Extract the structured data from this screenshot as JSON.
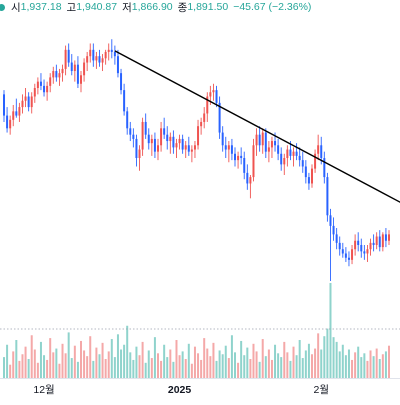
{
  "legend": {
    "dot_color": "#26a69a",
    "value_color": "#26a69a",
    "items": [
      {
        "label": "시",
        "value": "1,937.18"
      },
      {
        "label": "고",
        "value": "1,940.87"
      },
      {
        "label": "저",
        "value": "1,866.90"
      },
      {
        "label": "종",
        "value": "1,891.50"
      }
    ],
    "change": "−45.67 (−2.36%)"
  },
  "colors": {
    "up": "#ef5350",
    "down": "#2962ff",
    "vol_up": "#f4a8a8",
    "vol_down": "#8fd3cc",
    "trendline": "#000000",
    "axis_text": "#131722"
  },
  "x_axis_labels": [
    {
      "text": "12월",
      "bold": false
    },
    {
      "text": "2025",
      "bold": true
    },
    {
      "text": "2월",
      "bold": false
    }
  ],
  "chart_data": {
    "type": "candlestick",
    "title": "",
    "xlabel": "",
    "ylabel": "",
    "ylim": [
      1780,
      2060
    ],
    "volume_max": 100,
    "grid": false,
    "legend": "top-left",
    "trendline": {
      "from_index": 36,
      "from_value": 2029,
      "to_index": 123,
      "to_value": 1895
    },
    "x_ticks": [
      {
        "index": 13,
        "label": "12월"
      },
      {
        "index": 57,
        "label": "2025"
      },
      {
        "index": 103,
        "label": "2월"
      }
    ],
    "candles": [
      [
        1988,
        1992,
        1962,
        1968
      ],
      [
        1968,
        1976,
        1952,
        1956
      ],
      [
        1956,
        1968,
        1950,
        1964
      ],
      [
        1964,
        1978,
        1958,
        1972
      ],
      [
        1972,
        1984,
        1966,
        1968
      ],
      [
        1968,
        1980,
        1962,
        1976
      ],
      [
        1976,
        1988,
        1970,
        1982
      ],
      [
        1982,
        1994,
        1976,
        1986
      ],
      [
        1986,
        1990,
        1972,
        1976
      ],
      [
        1976,
        1990,
        1970,
        1986
      ],
      [
        1986,
        1998,
        1980,
        1994
      ],
      [
        1994,
        2004,
        1988,
        2000
      ],
      [
        2000,
        2008,
        1992,
        1996
      ],
      [
        1996,
        2002,
        1986,
        1990
      ],
      [
        1990,
        2000,
        1982,
        1996
      ],
      [
        1996,
        2008,
        1990,
        2004
      ],
      [
        2004,
        2014,
        1998,
        2010
      ],
      [
        2010,
        2016,
        2000,
        2004
      ],
      [
        2004,
        2012,
        1996,
        2008
      ],
      [
        2008,
        2016,
        2000,
        2012
      ],
      [
        2012,
        2034,
        2006,
        2030
      ],
      [
        2030,
        2036,
        2014,
        2018
      ],
      [
        2018,
        2026,
        2006,
        2010
      ],
      [
        2010,
        2020,
        2000,
        2016
      ],
      [
        2016,
        2024,
        1994,
        1998
      ],
      [
        1998,
        2010,
        1990,
        2006
      ],
      [
        2006,
        2022,
        2000,
        2018
      ],
      [
        2018,
        2028,
        2010,
        2024
      ],
      [
        2024,
        2036,
        2018,
        2030
      ],
      [
        2030,
        2036,
        2014,
        2020
      ],
      [
        2020,
        2028,
        2012,
        2024
      ],
      [
        2024,
        2030,
        2014,
        2018
      ],
      [
        2018,
        2026,
        2010,
        2022
      ],
      [
        2022,
        2030,
        2016,
        2028
      ],
      [
        2028,
        2036,
        2020,
        2030
      ],
      [
        2030,
        2040,
        2022,
        2028
      ],
      [
        2028,
        2034,
        2016,
        2024
      ],
      [
        2024,
        2030,
        2004,
        2008
      ],
      [
        2008,
        2012,
        1988,
        1992
      ],
      [
        1992,
        1998,
        1968,
        1972
      ],
      [
        1972,
        1976,
        1950,
        1956
      ],
      [
        1956,
        1962,
        1944,
        1950
      ],
      [
        1950,
        1956,
        1938,
        1946
      ],
      [
        1946,
        1950,
        1920,
        1928
      ],
      [
        1928,
        1940,
        1916,
        1936
      ],
      [
        1936,
        1966,
        1930,
        1962
      ],
      [
        1962,
        1970,
        1946,
        1950
      ],
      [
        1950,
        1956,
        1936,
        1942
      ],
      [
        1942,
        1950,
        1930,
        1946
      ],
      [
        1946,
        1952,
        1928,
        1934
      ],
      [
        1934,
        1946,
        1926,
        1940
      ],
      [
        1940,
        1962,
        1934,
        1956
      ],
      [
        1956,
        1966,
        1946,
        1950
      ],
      [
        1950,
        1958,
        1936,
        1944
      ],
      [
        1944,
        1952,
        1932,
        1948
      ],
      [
        1948,
        1954,
        1932,
        1938
      ],
      [
        1938,
        1946,
        1928,
        1942
      ],
      [
        1942,
        1950,
        1936,
        1946
      ],
      [
        1946,
        1950,
        1932,
        1936
      ],
      [
        1936,
        1944,
        1928,
        1940
      ],
      [
        1940,
        1948,
        1930,
        1934
      ],
      [
        1934,
        1940,
        1924,
        1936
      ],
      [
        1936,
        1944,
        1928,
        1940
      ],
      [
        1940,
        1964,
        1936,
        1958
      ],
      [
        1958,
        1966,
        1950,
        1962
      ],
      [
        1962,
        1976,
        1956,
        1970
      ],
      [
        1970,
        1990,
        1962,
        1986
      ],
      [
        1986,
        1996,
        1978,
        1990
      ],
      [
        1990,
        1998,
        1982,
        1992
      ],
      [
        1992,
        1996,
        1976,
        1980
      ],
      [
        1980,
        1986,
        1946,
        1952
      ],
      [
        1952,
        1958,
        1934,
        1940
      ],
      [
        1940,
        1948,
        1928,
        1936
      ],
      [
        1936,
        1944,
        1924,
        1940
      ],
      [
        1940,
        1946,
        1926,
        1932
      ],
      [
        1932,
        1938,
        1920,
        1926
      ],
      [
        1926,
        1934,
        1918,
        1930
      ],
      [
        1930,
        1938,
        1922,
        1928
      ],
      [
        1928,
        1934,
        1908,
        1914
      ],
      [
        1914,
        1922,
        1898,
        1904
      ],
      [
        1904,
        1912,
        1890,
        1910
      ],
      [
        1910,
        1946,
        1906,
        1940
      ],
      [
        1940,
        1956,
        1930,
        1950
      ],
      [
        1950,
        1958,
        1934,
        1940
      ],
      [
        1940,
        1956,
        1932,
        1952
      ],
      [
        1952,
        1956,
        1928,
        1934
      ],
      [
        1934,
        1944,
        1924,
        1938
      ],
      [
        1938,
        1948,
        1928,
        1944
      ],
      [
        1944,
        1952,
        1934,
        1940
      ],
      [
        1940,
        1946,
        1926,
        1932
      ],
      [
        1932,
        1938,
        1916,
        1922
      ],
      [
        1922,
        1932,
        1912,
        1928
      ],
      [
        1928,
        1940,
        1920,
        1936
      ],
      [
        1936,
        1944,
        1926,
        1930
      ],
      [
        1930,
        1938,
        1920,
        1934
      ],
      [
        1934,
        1942,
        1926,
        1930
      ],
      [
        1930,
        1938,
        1920,
        1926
      ],
      [
        1926,
        1934,
        1914,
        1920
      ],
      [
        1920,
        1926,
        1904,
        1910
      ],
      [
        1910,
        1914,
        1898,
        1904
      ],
      [
        1904,
        1922,
        1900,
        1918
      ],
      [
        1918,
        1936,
        1914,
        1932
      ],
      [
        1932,
        1950,
        1926,
        1940
      ],
      [
        1940,
        1948,
        1922,
        1928
      ],
      [
        1928,
        1934,
        1904,
        1910
      ],
      [
        1910,
        1914,
        1868,
        1874
      ],
      [
        1874,
        1880,
        1812,
        1864
      ],
      [
        1864,
        1872,
        1850,
        1856
      ],
      [
        1856,
        1862,
        1842,
        1848
      ],
      [
        1848,
        1854,
        1836,
        1842
      ],
      [
        1842,
        1848,
        1834,
        1838
      ],
      [
        1838,
        1844,
        1830,
        1834
      ],
      [
        1834,
        1840,
        1826,
        1832
      ],
      [
        1832,
        1846,
        1828,
        1842
      ],
      [
        1842,
        1856,
        1836,
        1850
      ],
      [
        1850,
        1858,
        1840,
        1846
      ],
      [
        1846,
        1852,
        1834,
        1840
      ],
      [
        1840,
        1846,
        1832,
        1838
      ],
      [
        1838,
        1846,
        1830,
        1842
      ],
      [
        1842,
        1852,
        1836,
        1848
      ],
      [
        1848,
        1856,
        1840,
        1846
      ],
      [
        1846,
        1858,
        1842,
        1854
      ],
      [
        1854,
        1860,
        1840,
        1844
      ],
      [
        1844,
        1858,
        1840,
        1856
      ],
      [
        1856,
        1862,
        1844,
        1850
      ],
      [
        1850,
        1860,
        1846,
        1856
      ]
    ],
    "volumes": [
      22,
      35,
      14,
      28,
      40,
      18,
      25,
      33,
      20,
      45,
      30,
      16,
      38,
      24,
      19,
      42,
      27,
      31,
      15,
      36,
      26,
      48,
      21,
      34,
      17,
      39,
      29,
      23,
      44,
      18,
      32,
      25,
      37,
      20,
      28,
      41,
      22,
      46,
      30,
      35,
      55,
      27,
      19,
      33,
      24,
      38,
      16,
      29,
      21,
      43,
      26,
      18,
      35,
      22,
      30,
      17,
      40,
      24,
      28,
      20,
      36,
      15,
      33,
      26,
      19,
      42,
      31,
      23,
      37,
      18,
      29,
      25,
      34,
      21,
      45,
      27,
      16,
      39,
      24,
      32,
      20,
      36,
      28,
      17,
      41,
      23,
      30,
      19,
      35,
      26,
      22,
      38,
      27,
      18,
      33,
      24,
      40,
      21,
      29,
      36,
      25,
      31,
      47,
      30,
      44,
      52,
      100,
      43,
      38,
      28,
      35,
      24,
      30,
      19,
      27,
      33,
      22,
      26,
      18,
      29,
      23,
      31,
      20,
      25,
      28,
      34
    ]
  }
}
